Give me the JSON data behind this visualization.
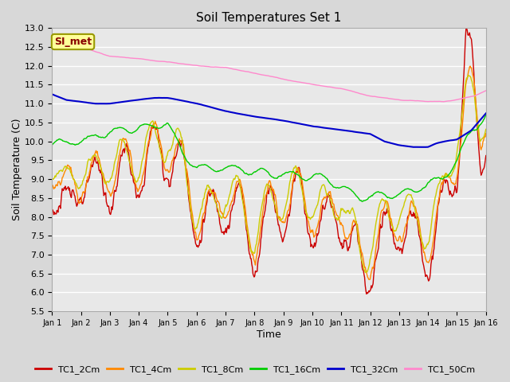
{
  "title": "Soil Temperatures Set 1",
  "xlabel": "Time",
  "ylabel": "Soil Temperature (C)",
  "ylim": [
    5.5,
    13.0
  ],
  "xlim": [
    0,
    15
  ],
  "xtick_labels": [
    "Jan 1",
    "Jan 2",
    "Jan 3",
    "Jan 4",
    "Jan 5",
    "Jan 6",
    "Jan 7",
    "Jan 8",
    "Jan 9",
    "Jan 10",
    "Jan 11",
    "Jan 12",
    "Jan 13",
    "Jan 14",
    "Jan 15",
    "Jan 16"
  ],
  "ytick_values": [
    5.5,
    6.0,
    6.5,
    7.0,
    7.5,
    8.0,
    8.5,
    9.0,
    9.5,
    10.0,
    10.5,
    11.0,
    11.5,
    12.0,
    12.5,
    13.0
  ],
  "background_color": "#d8d8d8",
  "plot_bg_color": "#e8e8e8",
  "grid_color": "#ffffff",
  "annotation_text": "SI_met",
  "annotation_box_color": "#ffff99",
  "annotation_border_color": "#999900",
  "annotation_text_color": "#880000",
  "series": {
    "TC1_2Cm": {
      "color": "#cc0000",
      "lw": 1.0
    },
    "TC1_4Cm": {
      "color": "#ff8800",
      "lw": 1.0
    },
    "TC1_8Cm": {
      "color": "#cccc00",
      "lw": 1.0
    },
    "TC1_16Cm": {
      "color": "#00cc00",
      "lw": 1.0
    },
    "TC1_32Cm": {
      "color": "#0000cc",
      "lw": 1.5
    },
    "TC1_50Cm": {
      "color": "#ff88cc",
      "lw": 1.0
    }
  },
  "legend_colors": {
    "TC1_2Cm": "#cc0000",
    "TC1_4Cm": "#ff8800",
    "TC1_8Cm": "#cccc00",
    "TC1_16Cm": "#00cc00",
    "TC1_32Cm": "#0000cc",
    "TC1_50Cm": "#ff88cc"
  }
}
